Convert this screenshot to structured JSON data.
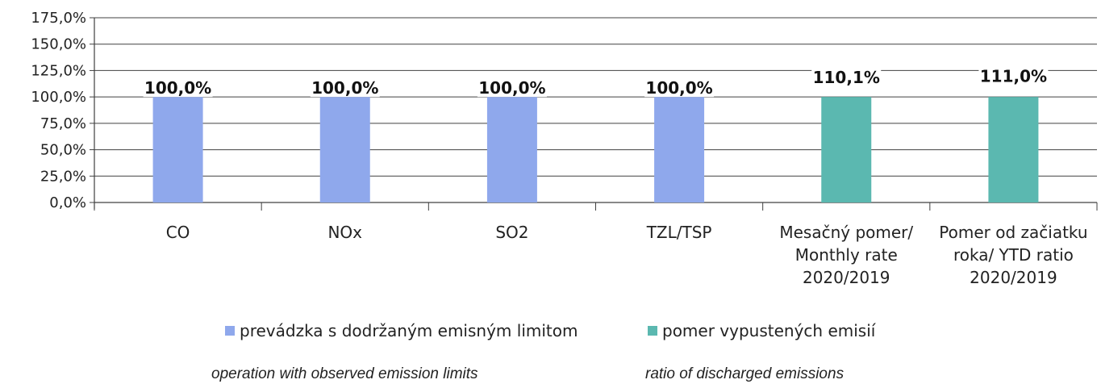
{
  "chart_data": {
    "type": "bar",
    "categories": [
      [
        "CO"
      ],
      [
        "NOx"
      ],
      [
        "SO2"
      ],
      [
        "TZL/TSP"
      ],
      [
        "Mesačný pomer/",
        "Monthly rate",
        "2020/2019"
      ],
      [
        "Pomer  od začiatku",
        "roka/ YTD ratio",
        "2020/2019"
      ]
    ],
    "values": [
      100.0,
      100.0,
      100.0,
      100.0,
      110.1,
      111.0
    ],
    "data_labels": [
      "100,0%",
      "100,0%",
      "100,0%",
      "100,0%",
      "110,1%",
      "111,0%"
    ],
    "series_of_bar": [
      0,
      0,
      0,
      0,
      1,
      1
    ],
    "series": [
      {
        "name": "prevádzka s dodržaným emisným limitom",
        "subtitle": "operation with observed emission limits",
        "color": "#8fa8ec"
      },
      {
        "name": "pomer vypustených emisií",
        "subtitle": "ratio of discharged emissions",
        "color": "#5bb8b0"
      }
    ],
    "y_ticks": [
      "0,0%",
      "25,0%",
      "50,0%",
      "75,0%",
      "100,0%",
      "125,0%",
      "150,0%",
      "175,0%"
    ],
    "ylim": [
      0,
      175
    ],
    "grid": true,
    "legend_position": "bottom"
  }
}
